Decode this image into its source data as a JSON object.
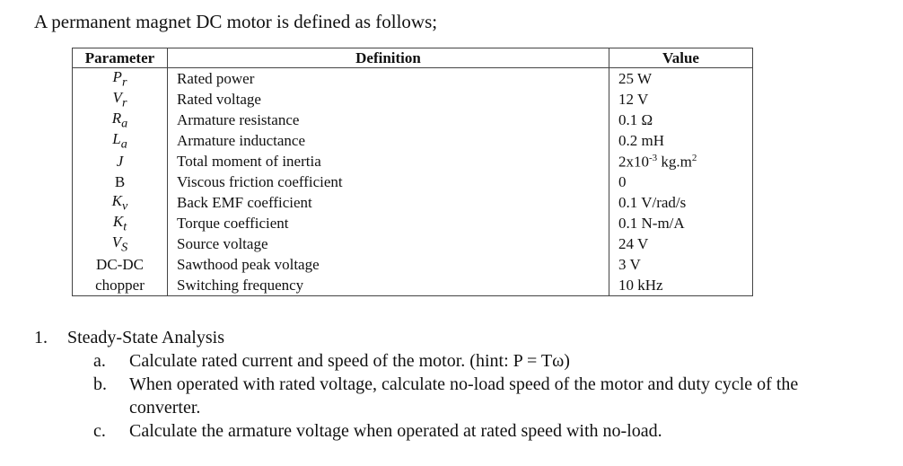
{
  "intro": "A permanent magnet DC motor is defined as follows;",
  "table": {
    "headers": [
      "Parameter",
      "Definition",
      "Value"
    ],
    "rows": [
      {
        "param": "Pr",
        "def": "Rated power",
        "val": "25 W"
      },
      {
        "param": "Vr",
        "def": "Rated voltage",
        "val": "12 V"
      },
      {
        "param": "Ra",
        "def": "Armature resistance",
        "val": "0.1 Ω"
      },
      {
        "param": "La",
        "def": "Armature inductance",
        "val": "0.2 mH"
      },
      {
        "param": "J",
        "def": "Total moment of inertia",
        "val": "2x10-3 kg.m2"
      },
      {
        "param": "B",
        "def": "Viscous friction coefficient",
        "val": "0"
      },
      {
        "param": "Kv",
        "def": "Back EMF coefficient",
        "val": "0.1 V/rad/s"
      },
      {
        "param": "Kt",
        "def": "Torque coefficient",
        "val": "0.1 N-m/A"
      },
      {
        "param": "Vs",
        "def": "Source voltage",
        "val": "24 V"
      },
      {
        "param": "DC-DC",
        "def": "Sawthood peak voltage",
        "val": "3 V"
      },
      {
        "param": "chopper",
        "def": "Switching frequency",
        "val": "10 kHz"
      }
    ]
  },
  "questions": {
    "main_num": "1.",
    "main_text": "Steady-State Analysis",
    "items": [
      {
        "letter": "a.",
        "text": "Calculate rated current and speed of the motor. (hint: P = Tω)"
      },
      {
        "letter": "b.",
        "text": "When operated with rated voltage, calculate no-load speed of the motor and duty cycle of the converter."
      },
      {
        "letter": "c.",
        "text": "Calculate the armature voltage when operated at rated speed with no-load."
      }
    ]
  }
}
